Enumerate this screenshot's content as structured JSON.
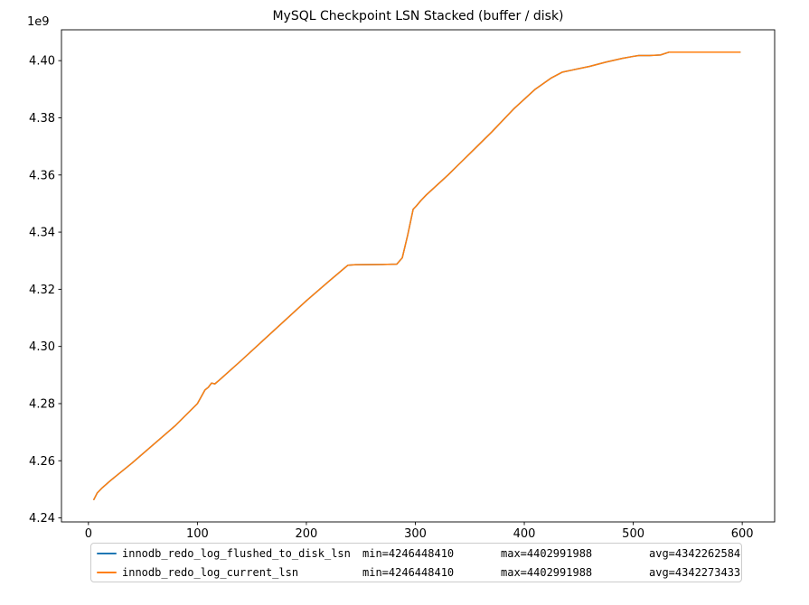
{
  "chart_data": {
    "type": "line",
    "title": "MySQL Checkpoint LSN Stacked (buffer / disk)",
    "offset_text": "1e9",
    "xlabel": "",
    "ylabel": "",
    "grid": false,
    "legend_position": "below",
    "xlim": [
      -24.75,
      629.75
    ],
    "ylim": [
      4238600000,
      4410800000
    ],
    "xticks": [
      0,
      100,
      200,
      300,
      400,
      500,
      600
    ],
    "yticks": [
      4240000000,
      4260000000,
      4280000000,
      4300000000,
      4320000000,
      4340000000,
      4360000000,
      4380000000,
      4400000000
    ],
    "y_offset_divisor": 1000000000,
    "x": [
      5,
      8,
      12,
      20,
      40,
      60,
      80,
      100,
      107,
      110,
      113,
      116,
      120,
      140,
      160,
      180,
      200,
      220,
      238,
      245,
      270,
      283,
      288,
      293,
      298,
      301,
      305,
      310,
      330,
      350,
      370,
      390,
      410,
      425,
      435,
      445,
      460,
      475,
      490,
      500,
      505,
      515,
      525,
      533,
      560,
      580,
      598
    ],
    "series": [
      {
        "name": "innodb_redo_log_flushed_to_disk_lsn",
        "color": "#1f77b4",
        "stats": {
          "min": 4246448410,
          "max": 4402991988,
          "avg": 4342262584,
          "min_label": "min=4246448410",
          "max_label": "max=4402991988",
          "avg_label": "avg=4342262584"
        },
        "values": [
          4246448410,
          4248700000,
          4250300000,
          4253000000,
          4259200000,
          4265800000,
          4272400000,
          4280000000,
          4284800000,
          4285700000,
          4287200000,
          4286900000,
          4288200000,
          4295000000,
          4302000000,
          4309000000,
          4316000000,
          4322600000,
          4328400000,
          4328600000,
          4328700000,
          4328800000,
          4331000000,
          4339000000,
          4348000000,
          4349200000,
          4351000000,
          4353000000,
          4360000000,
          4367500000,
          4375000000,
          4383000000,
          4390000000,
          4394000000,
          4396000000,
          4396800000,
          4398000000,
          4399500000,
          4400800000,
          4401500000,
          4401800000,
          4401800000,
          4402000000,
          4402991988,
          4402991988,
          4402991988,
          4402991988
        ]
      },
      {
        "name": "innodb_redo_log_current_lsn",
        "color": "#ff7f0e",
        "stats": {
          "min": 4246448410,
          "max": 4402991988,
          "avg": 4342273433,
          "min_label": "min=4246448410",
          "max_label": "max=4402991988",
          "avg_label": "avg=4342273433"
        },
        "values": [
          4246448410,
          4248700000,
          4250300000,
          4253000000,
          4259200000,
          4265800000,
          4272400000,
          4280000000,
          4284800000,
          4285700000,
          4287200000,
          4286900000,
          4288200000,
          4295000000,
          4302000000,
          4309000000,
          4316000000,
          4322600000,
          4328400000,
          4328600000,
          4328700000,
          4328800000,
          4331000000,
          4339000000,
          4348000000,
          4349200000,
          4351000000,
          4353000000,
          4360000000,
          4367500000,
          4375000000,
          4383000000,
          4390000000,
          4394000000,
          4396000000,
          4396800000,
          4398000000,
          4399500000,
          4400800000,
          4401500000,
          4401800000,
          4401800000,
          4402000000,
          4402991988,
          4402991988,
          4402991988,
          4402991988
        ]
      }
    ]
  }
}
